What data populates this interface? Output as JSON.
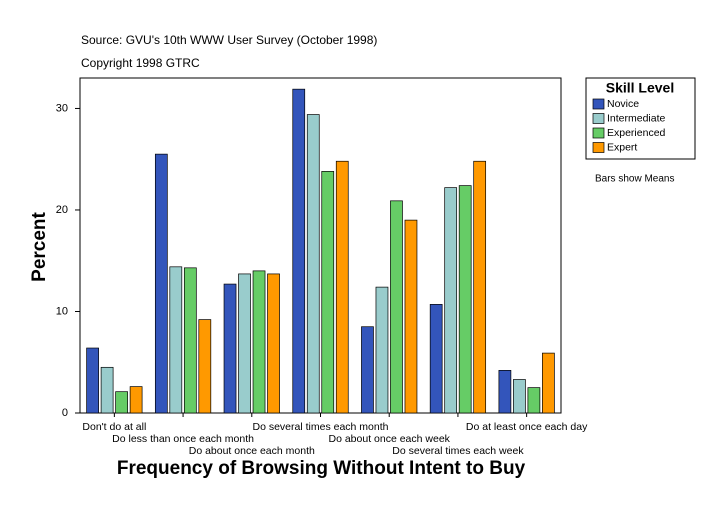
{
  "chart_data": {
    "type": "bar",
    "title": "Source: GVU's 10th WWW User Survey (October 1998)",
    "subtitle": "Copyright 1998 GTRC",
    "annotation": "Bars show Means",
    "legend_title": "Skill Level",
    "x_label": "Frequency of Browsing Without Intent to Buy",
    "y_label": "Percent",
    "categories": [
      "Don't do at all",
      "Do less than once each month",
      "Do about once each month",
      "Do several times each month",
      "Do about once each week",
      "Do several times each week",
      "Do at least once each day"
    ],
    "series": [
      {
        "name": "Novice",
        "color": "#3355bb",
        "values": [
          6.4,
          25.5,
          12.7,
          31.9,
          8.5,
          10.7,
          4.2
        ]
      },
      {
        "name": "Intermediate",
        "color": "#99cccc",
        "values": [
          4.5,
          14.4,
          13.7,
          29.4,
          12.4,
          22.2,
          3.3
        ]
      },
      {
        "name": "Experienced",
        "color": "#66cc66",
        "values": [
          2.1,
          14.3,
          14.0,
          23.8,
          20.9,
          22.4,
          2.5
        ]
      },
      {
        "name": "Expert",
        "color": "#ff9900",
        "values": [
          2.6,
          9.2,
          13.7,
          24.8,
          19.0,
          24.8,
          5.9
        ]
      }
    ],
    "ylim": [
      0,
      33
    ],
    "yticks": [
      0,
      10,
      20,
      30
    ],
    "grid": false,
    "legend": "right"
  }
}
